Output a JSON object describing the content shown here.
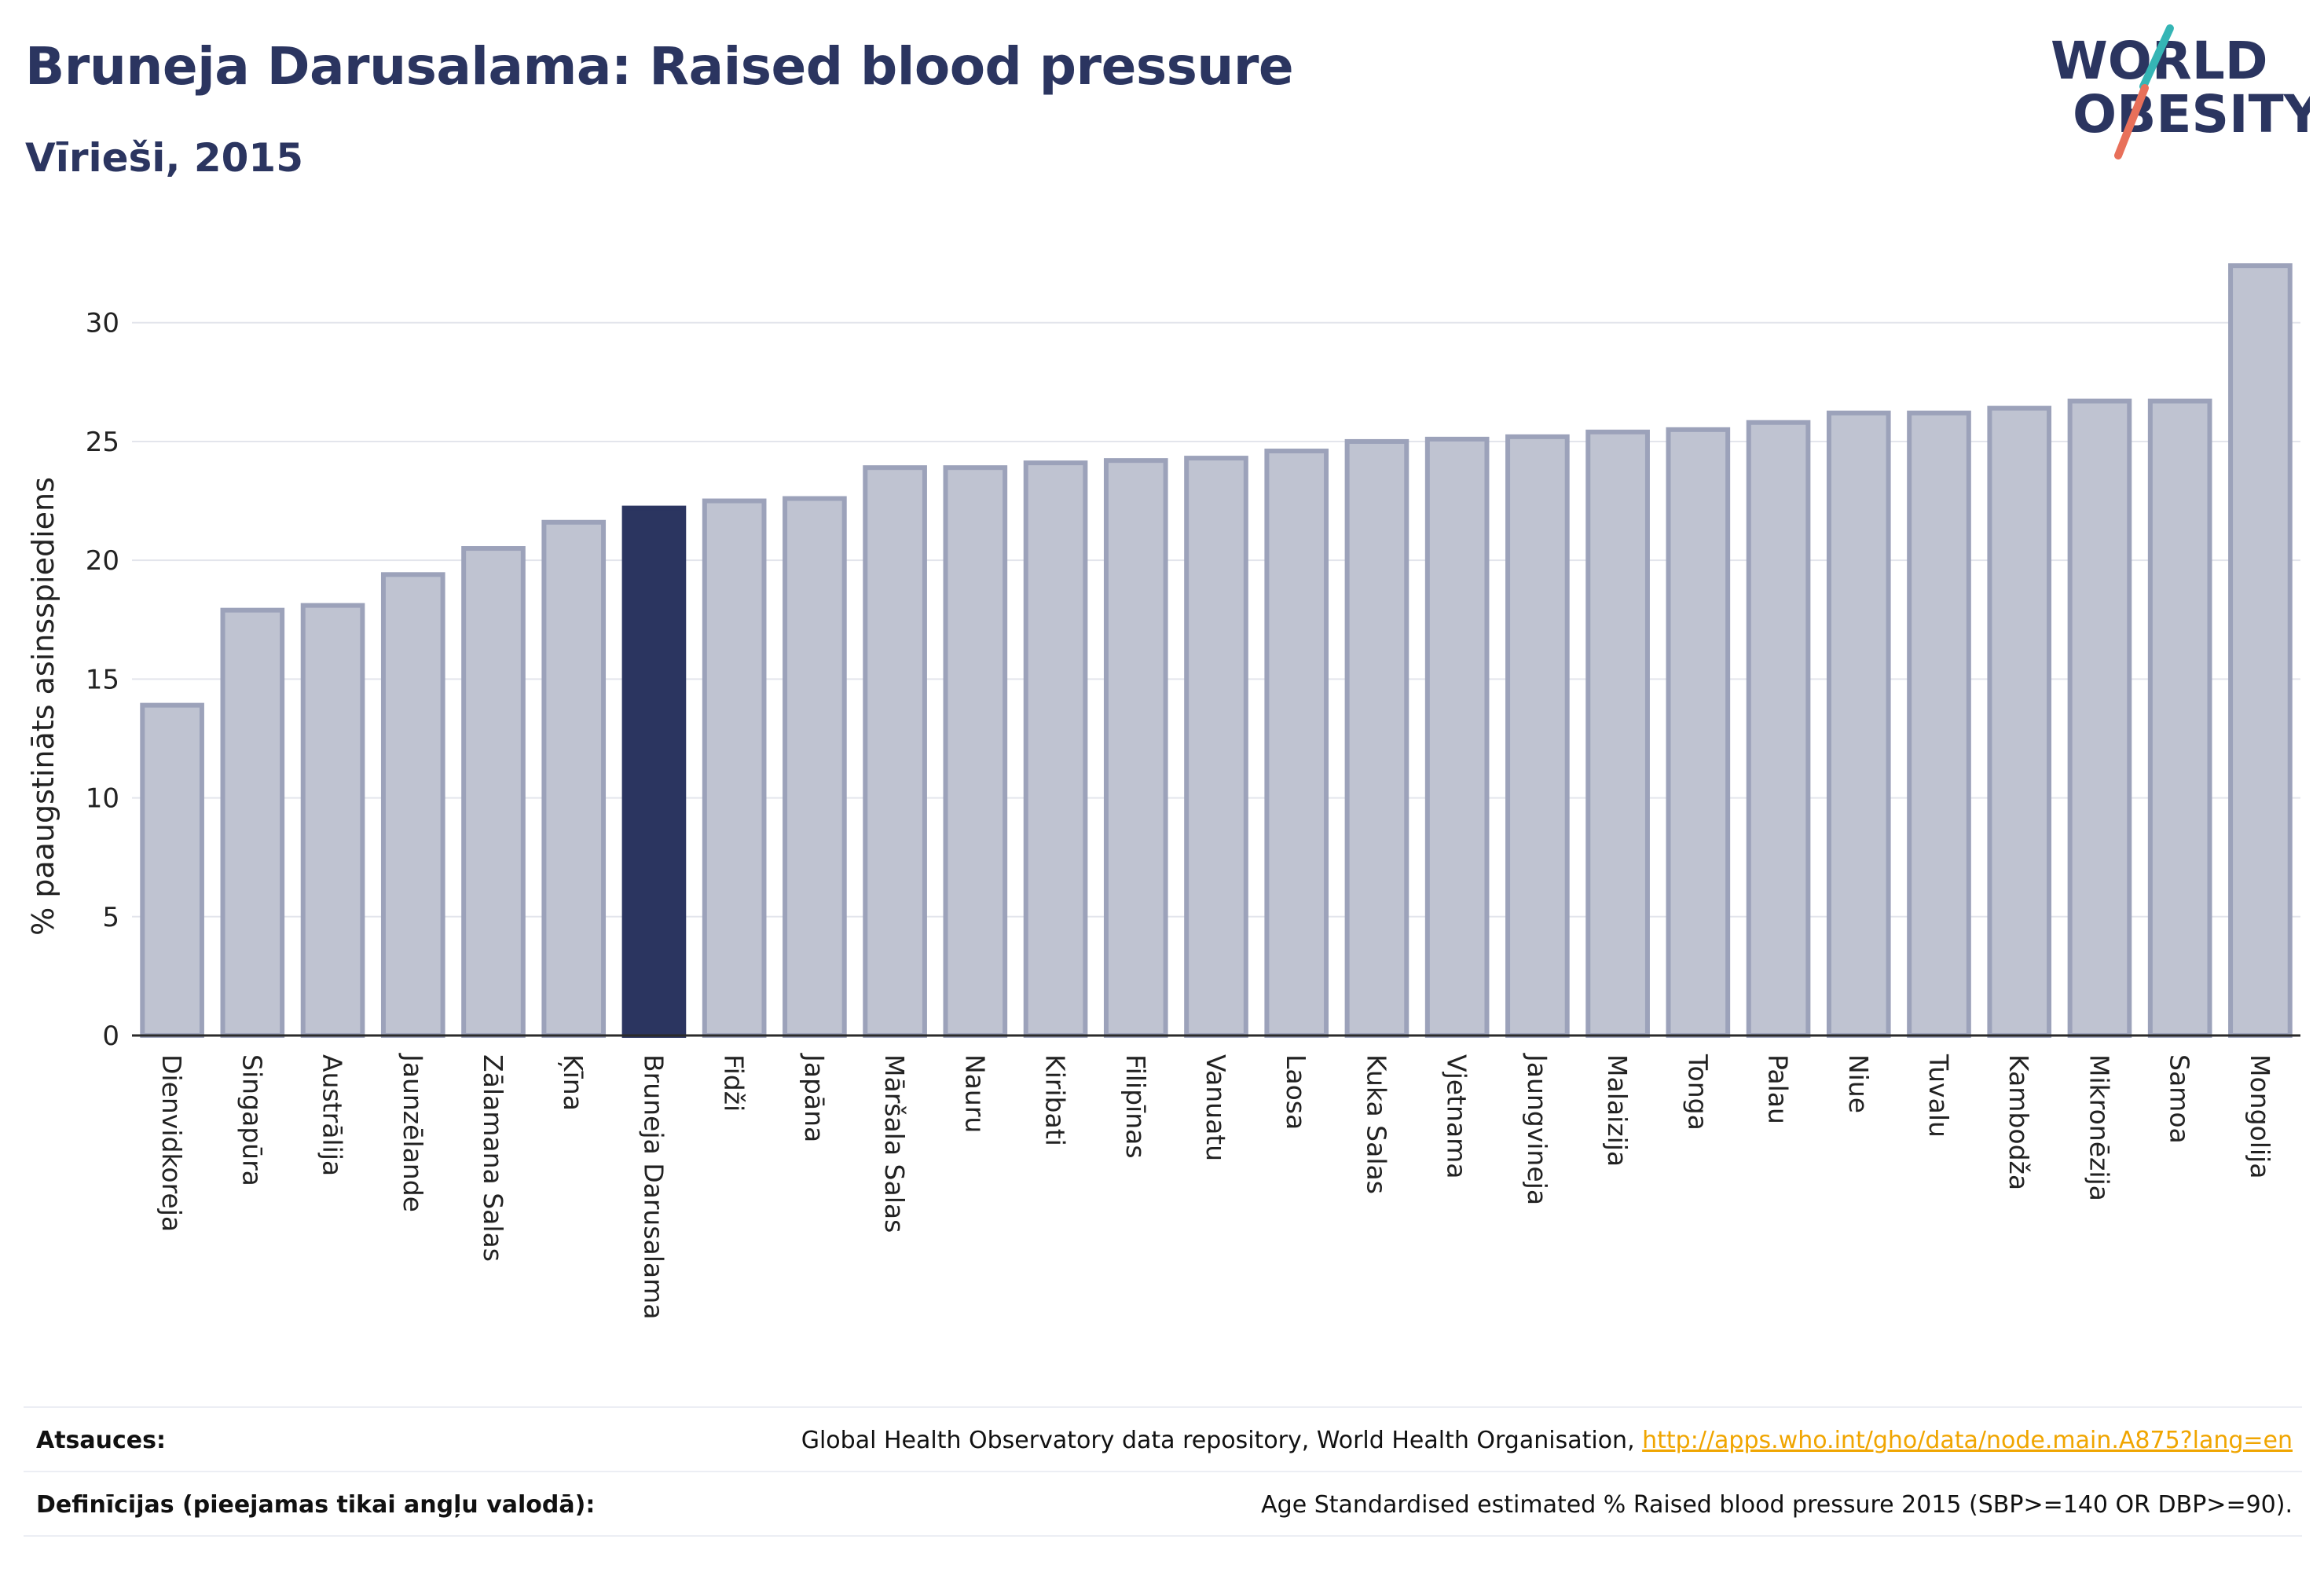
{
  "header": {
    "title": "Bruneja Darusalama: Raised blood pressure",
    "subtitle": "Vīrieši, 2015"
  },
  "logo": {
    "line1": "WORLD",
    "line2": "OBESITY"
  },
  "colors": {
    "highlight_bar": "#2b3560",
    "bar_fill": "#bfc3d1",
    "bar_stroke": "#9ca2ba",
    "grid": "#e3e5ec",
    "logo_text": "#2b3560",
    "logo_slash_teal": "#35b5b5",
    "logo_slash_red": "#e8705a",
    "link": "#f0a500"
  },
  "chart_data": {
    "type": "bar",
    "ylabel": "% paaugstināts asinsspiediens",
    "xlabel": "",
    "ylim": [
      0,
      33
    ],
    "yticks": [
      0,
      5,
      10,
      15,
      20,
      25,
      30
    ],
    "grid": "horizontal",
    "highlight": "Bruneja Darusalama",
    "categories": [
      "Dienvidkoreja",
      "Singapūra",
      "Austrālija",
      "Jaunzēlande",
      "Zālamana Salas",
      "Ķīna",
      "Bruneja Darusalama",
      "Fidži",
      "Japāna",
      "Māršala Salas",
      "Nauru",
      "Kiribati",
      "Filipīnas",
      "Vanuatu",
      "Laosa",
      "Kuka Salas",
      "Vjetnama",
      "Jaungvineja",
      "Malaizija",
      "Tonga",
      "Palau",
      "Niue",
      "Tuvalu",
      "Kambodža",
      "Mikronēzija",
      "Samoa",
      "Mongolija"
    ],
    "values": [
      13.9,
      17.9,
      18.1,
      19.4,
      20.5,
      21.6,
      22.2,
      22.5,
      22.6,
      23.9,
      23.9,
      24.1,
      24.2,
      24.3,
      24.6,
      25.0,
      25.1,
      25.2,
      25.4,
      25.5,
      25.8,
      26.2,
      26.2,
      26.4,
      26.7,
      26.7,
      32.4
    ]
  },
  "footer": {
    "sources_label": "Atsauces:",
    "sources_text": "Global Health Observatory data repository, World Health Organisation, ",
    "sources_link": "http://apps.who.int/gho/data/node.main.A875?lang=en",
    "definitions_label": "Definīcijas (pieejamas tikai angļu valodā):",
    "definitions_text": "Age Standardised estimated % Raised blood pressure 2015 (SBP>=140 OR DBP>=90)."
  }
}
